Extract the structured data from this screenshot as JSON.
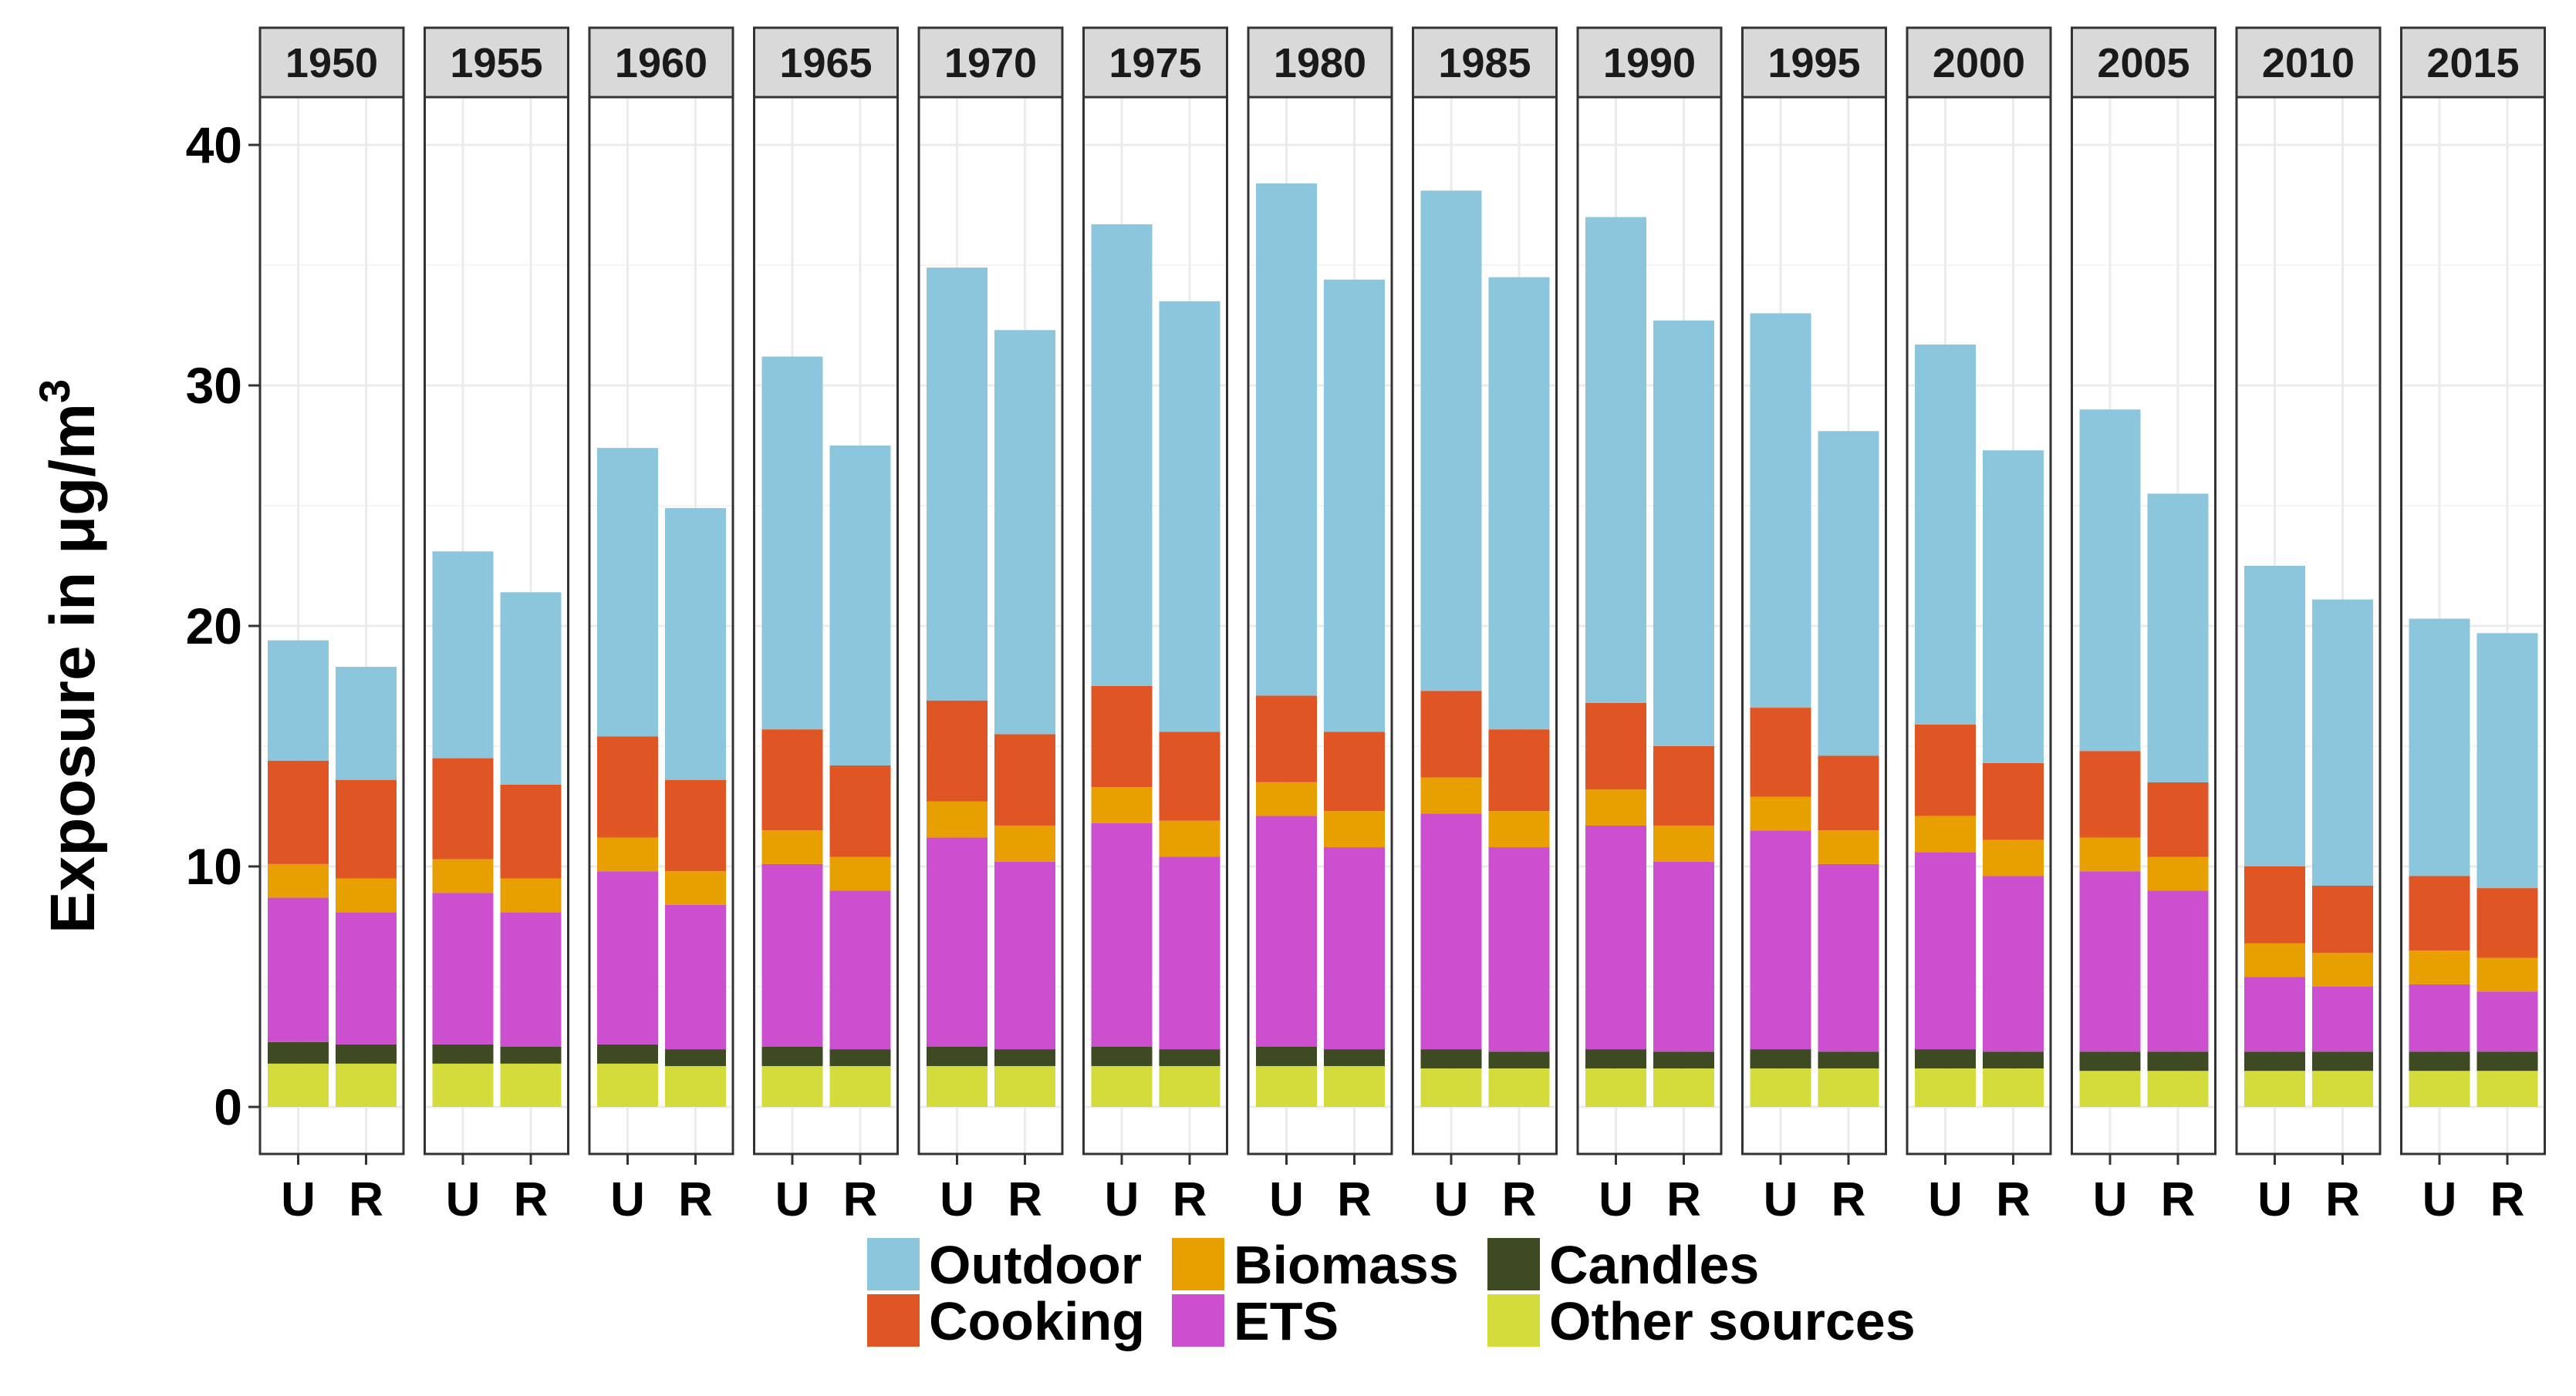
{
  "chart_data": {
    "type": "stacked-bar",
    "facet_by": "year",
    "facets": [
      "1950",
      "1955",
      "1960",
      "1965",
      "1970",
      "1975",
      "1980",
      "1985",
      "1990",
      "1995",
      "2000",
      "2005",
      "2010",
      "2015"
    ],
    "categories": [
      "U",
      "R"
    ],
    "ylabel": "Exposure in μg/m",
    "ylabel_superscript": "3",
    "ylim": [
      0,
      42
    ],
    "yticks": [
      0,
      10,
      20,
      30,
      40
    ],
    "grid": true,
    "legend_position": "bottom",
    "series": [
      {
        "name": "Other sources",
        "color": "#d4dc3c",
        "values": [
          [
            1.8,
            1.8
          ],
          [
            1.8,
            1.8
          ],
          [
            1.8,
            1.7
          ],
          [
            1.7,
            1.7
          ],
          [
            1.7,
            1.7
          ],
          [
            1.7,
            1.7
          ],
          [
            1.7,
            1.7
          ],
          [
            1.6,
            1.6
          ],
          [
            1.6,
            1.6
          ],
          [
            1.6,
            1.6
          ],
          [
            1.6,
            1.6
          ],
          [
            1.5,
            1.5
          ],
          [
            1.5,
            1.5
          ],
          [
            1.5,
            1.5
          ]
        ]
      },
      {
        "name": "Candles",
        "color": "#3d4a22",
        "values": [
          [
            0.9,
            0.8
          ],
          [
            0.8,
            0.7
          ],
          [
            0.8,
            0.7
          ],
          [
            0.8,
            0.7
          ],
          [
            0.8,
            0.7
          ],
          [
            0.8,
            0.7
          ],
          [
            0.8,
            0.7
          ],
          [
            0.8,
            0.7
          ],
          [
            0.8,
            0.7
          ],
          [
            0.8,
            0.7
          ],
          [
            0.8,
            0.7
          ],
          [
            0.8,
            0.8
          ],
          [
            0.8,
            0.8
          ],
          [
            0.8,
            0.8
          ]
        ]
      },
      {
        "name": "ETS",
        "color": "#cc4fcf",
        "values": [
          [
            6.0,
            5.5
          ],
          [
            6.3,
            5.6
          ],
          [
            7.2,
            6.0
          ],
          [
            7.6,
            6.6
          ],
          [
            8.7,
            7.8
          ],
          [
            9.3,
            8.0
          ],
          [
            9.6,
            8.4
          ],
          [
            9.8,
            8.5
          ],
          [
            9.3,
            7.9
          ],
          [
            9.1,
            7.8
          ],
          [
            8.2,
            7.3
          ],
          [
            7.5,
            6.7
          ],
          [
            3.1,
            2.7
          ],
          [
            2.8,
            2.5
          ]
        ]
      },
      {
        "name": "Biomass",
        "color": "#e8a000",
        "values": [
          [
            1.4,
            1.4
          ],
          [
            1.4,
            1.4
          ],
          [
            1.4,
            1.4
          ],
          [
            1.4,
            1.4
          ],
          [
            1.5,
            1.5
          ],
          [
            1.5,
            1.5
          ],
          [
            1.4,
            1.5
          ],
          [
            1.5,
            1.5
          ],
          [
            1.5,
            1.5
          ],
          [
            1.4,
            1.4
          ],
          [
            1.5,
            1.5
          ],
          [
            1.4,
            1.4
          ],
          [
            1.4,
            1.4
          ],
          [
            1.4,
            1.4
          ]
        ]
      },
      {
        "name": "Cooking",
        "color": "#e05524",
        "values": [
          [
            4.3,
            4.1
          ],
          [
            4.2,
            3.9
          ],
          [
            4.2,
            3.8
          ],
          [
            4.2,
            3.8
          ],
          [
            4.2,
            3.8
          ],
          [
            4.2,
            3.7
          ],
          [
            3.6,
            3.3
          ],
          [
            3.6,
            3.4
          ],
          [
            3.6,
            3.3
          ],
          [
            3.7,
            3.1
          ],
          [
            3.8,
            3.2
          ],
          [
            3.6,
            3.1
          ],
          [
            3.2,
            2.8
          ],
          [
            3.1,
            2.9
          ]
        ]
      },
      {
        "name": "Outdoor",
        "color": "#8bc6dc",
        "values": [
          [
            5.0,
            4.7
          ],
          [
            8.6,
            8.0
          ],
          [
            12.0,
            11.3
          ],
          [
            15.5,
            13.3
          ],
          [
            18.0,
            16.8
          ],
          [
            19.2,
            17.9
          ],
          [
            21.3,
            18.8
          ],
          [
            20.8,
            18.8
          ],
          [
            20.2,
            17.7
          ],
          [
            16.4,
            13.5
          ],
          [
            15.8,
            13.0
          ],
          [
            14.2,
            12.0
          ],
          [
            12.5,
            11.9
          ],
          [
            10.7,
            10.6
          ]
        ]
      }
    ],
    "legend_order": [
      "Outdoor",
      "Cooking",
      "Biomass",
      "ETS",
      "Candles",
      "Other sources"
    ]
  }
}
